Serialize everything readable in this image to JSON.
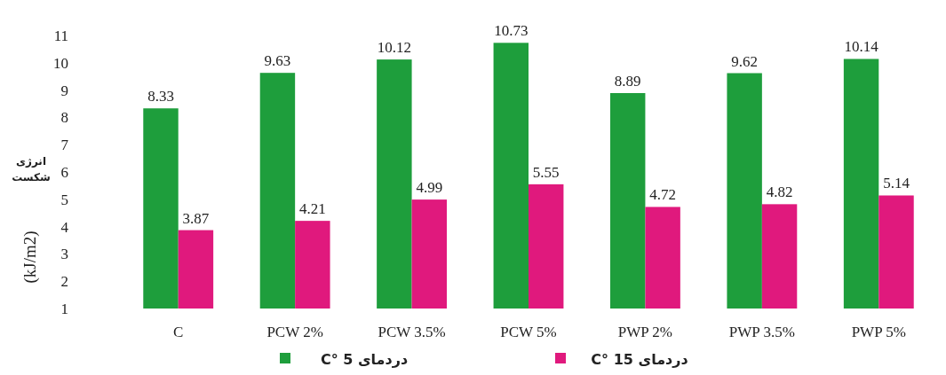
{
  "chart_data": {
    "type": "bar",
    "ylabel": "انرژی شکست",
    "annotations": [
      "(kJ/m2)"
    ],
    "categories": [
      "C",
      "PCW 2%",
      "PCW 3.5%",
      "PCW 5%",
      "PWP 2%",
      "PWP 3.5%",
      "PWP 5%"
    ],
    "series": [
      {
        "name": "دردمای 5 °C",
        "color": "#1e9e3c",
        "values": [
          8.33,
          9.63,
          10.12,
          10.73,
          8.89,
          9.62,
          10.14
        ]
      },
      {
        "name": "دردمای 15 °C",
        "color": "#e0197d",
        "values": [
          3.87,
          4.21,
          4.99,
          5.55,
          4.72,
          4.82,
          5.14
        ]
      }
    ],
    "ylim": [
      1,
      11
    ],
    "yticks": [
      1,
      2,
      3,
      4,
      5,
      6,
      7,
      8,
      9,
      10,
      11
    ],
    "data_labels": true,
    "legend": "bottom"
  }
}
